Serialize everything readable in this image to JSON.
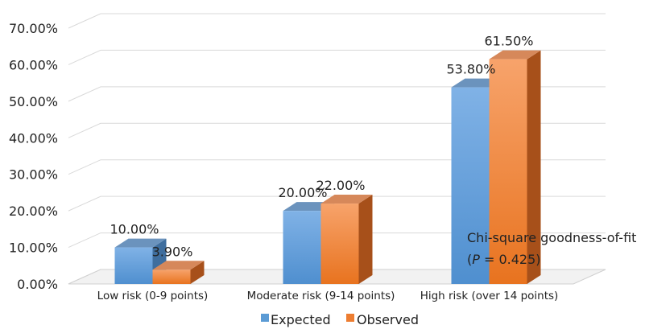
{
  "chart_data": {
    "type": "bar",
    "style": "3d-clustered-column",
    "categories": [
      "Low risk (0-9 points)",
      "Moderate risk (9-14 points)",
      "High risk (over 14 points)"
    ],
    "series": [
      {
        "name": "Expected",
        "values": [
          10.0,
          20.0,
          53.8
        ],
        "labels": [
          "10.00%",
          "20.00%",
          "53.80%"
        ],
        "color": "#5b9bd5"
      },
      {
        "name": "Observed",
        "values": [
          3.9,
          22.0,
          61.5
        ],
        "labels": [
          "3.90%",
          "22.00%",
          "61.50%"
        ],
        "color": "#ed7d31"
      }
    ],
    "yticks": [
      "0.00%",
      "10.00%",
      "20.00%",
      "30.00%",
      "40.00%",
      "50.00%",
      "60.00%",
      "70.00%"
    ],
    "ylim": [
      0,
      70
    ],
    "grid": true,
    "legend_position": "bottom",
    "annotation": {
      "line1": "Chi-square goodness-of-fit",
      "line2_prefix": "(",
      "line2_italic": "P",
      "line2_suffix": " = 0.425)"
    }
  }
}
